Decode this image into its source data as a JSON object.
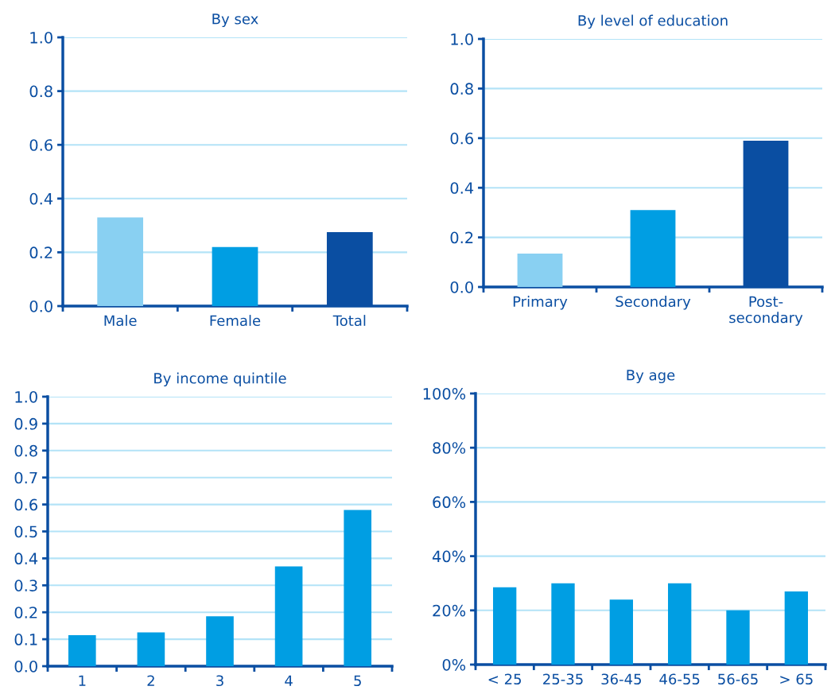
{
  "chart_data": [
    {
      "type": "bar",
      "title": "By sex",
      "categories": [
        "Male",
        "Female",
        "Total"
      ],
      "colors": [
        "#89d0f2",
        "#009ee3",
        "#0a4ea2"
      ],
      "values": [
        0.33,
        0.22,
        0.275
      ],
      "ylim": [
        0,
        1.0
      ],
      "yticks": [
        {
          "value": 0,
          "label": "0.0"
        },
        0.2,
        0.4,
        0.6,
        0.8,
        {
          "value": 1.0,
          "label": "1.0"
        }
      ],
      "grid": "y"
    },
    {
      "type": "bar",
      "title": "By level of education",
      "categories": [
        "Primary",
        "Secondary",
        "Post-\nsecondary"
      ],
      "colors": [
        "#89d0f2",
        "#009ee3",
        "#0a4ea2"
      ],
      "values": [
        0.135,
        0.31,
        0.59
      ],
      "ylim": [
        0,
        1.0
      ],
      "yticks": [
        {
          "value": 0,
          "label": "0.0"
        },
        0.2,
        0.4,
        0.6,
        0.8,
        {
          "value": 1.0,
          "label": "1.0"
        }
      ],
      "grid": "y"
    },
    {
      "type": "bar",
      "title": "By income quintile",
      "categories": [
        "1",
        "2",
        "3",
        "4",
        "5"
      ],
      "colors": [
        "#009ee3",
        "#009ee3",
        "#009ee3",
        "#009ee3",
        "#009ee3"
      ],
      "values": [
        0.115,
        0.125,
        0.185,
        0.37,
        0.58
      ],
      "ylim": [
        0,
        1.0
      ],
      "yticks": [
        {
          "value": 0,
          "label": "0.0"
        },
        0.1,
        0.2,
        0.3,
        0.4,
        0.5,
        0.6,
        0.7,
        0.8,
        0.9,
        {
          "value": 1.0,
          "label": "1.0"
        }
      ],
      "grid": "y"
    },
    {
      "type": "bar",
      "title": "By age",
      "categories": [
        "< 25",
        "25-35",
        "36-45",
        "46-55",
        "56-65",
        "> 65"
      ],
      "colors": [
        "#009ee3",
        "#009ee3",
        "#009ee3",
        "#009ee3",
        "#009ee3",
        "#009ee3"
      ],
      "values": [
        28.5,
        30,
        24,
        30,
        20,
        27
      ],
      "ylim": [
        0,
        100
      ],
      "yticks": [
        {
          "value": 0,
          "label": "0%"
        },
        {
          "value": 20,
          "label": "20%"
        },
        {
          "value": 40,
          "label": "40%"
        },
        {
          "value": 60,
          "label": "60%"
        },
        {
          "value": 80,
          "label": "80%"
        },
        {
          "value": 100,
          "label": "100%"
        }
      ],
      "grid": "y"
    }
  ]
}
